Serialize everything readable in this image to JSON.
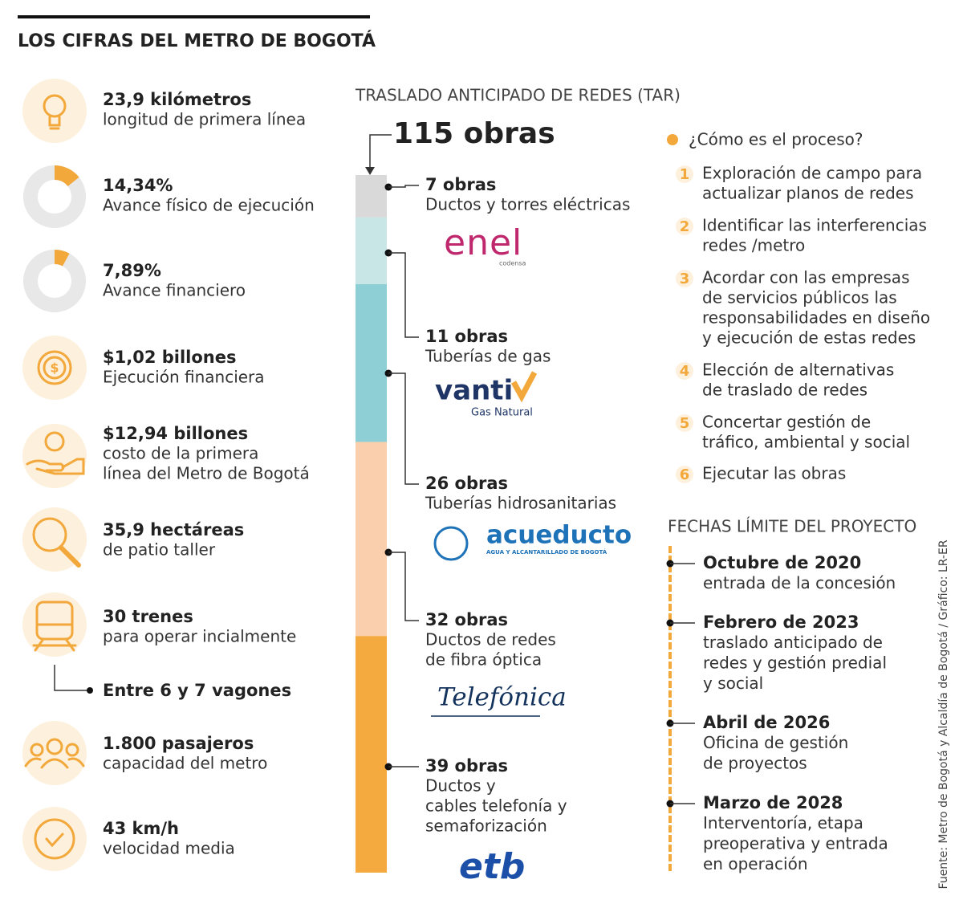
{
  "title": "LOS CIFRAS DEL METRO DE BOGOTÁ",
  "stats": [
    {
      "headline": "23,9 kilómetros",
      "lines": [
        "longitud de primera línea"
      ]
    },
    {
      "headline": {
        "value": 14.34,
        "label": "14,34%"
      },
      "lines": [
        "Avance físico de ejecución"
      ]
    },
    {
      "headline": {
        "value": 7.89,
        "label": "7,89%"
      },
      "lines": [
        "Avance financiero"
      ]
    },
    {
      "headline": "$1,02 billones",
      "lines": [
        "Ejecución financiera"
      ]
    },
    {
      "headline": "$12,94 billones",
      "lines": [
        "costo de la primera",
        "línea del Metro de Bogotá"
      ]
    },
    {
      "headline": "35,9 hectáreas",
      "lines": [
        "de patio taller"
      ]
    },
    {
      "headline": "30 trenes",
      "lines": [
        "para operar incialmente"
      ],
      "note": "Entre 6 y 7 vagones"
    },
    {
      "headline": "1.800 pasajeros",
      "lines": [
        "capacidad del metro"
      ]
    },
    {
      "headline": "43 km/h",
      "lines": [
        "velocidad media"
      ]
    }
  ],
  "tar": {
    "title": "TRASLADO ANTICIPADO DE REDES (TAR)",
    "total": "115 obras",
    "segments": [
      {
        "count": {
          "value": 7,
          "label": "7 obras"
        },
        "lines": [
          "Ductos y torres eléctricas"
        ],
        "logo": [
          "enel",
          "codensa"
        ]
      },
      {
        "count": {
          "value": 11,
          "label": "11 obras"
        },
        "lines": [
          "Tuberías de gas"
        ],
        "logo": [
          "vanti",
          "Gas Natural"
        ]
      },
      {
        "count": {
          "value": 26,
          "label": "26 obras"
        },
        "lines": [
          "Tuberías hidrosanitarias"
        ],
        "logo": [
          "acueducto",
          "AGUA Y ALCANTARILLADO DE BOGOTÁ"
        ]
      },
      {
        "count": {
          "value": 32,
          "label": "32 obras"
        },
        "lines": [
          "Ductos de redes",
          "de fibra óptica"
        ],
        "logo": [
          "Telefónica"
        ]
      },
      {
        "count": {
          "value": 39,
          "label": "39 obras"
        },
        "lines": [
          "Ductos y",
          "cables telefonía y",
          "semaforización"
        ],
        "logo": [
          "etb"
        ]
      }
    ]
  },
  "process": {
    "title": "¿Cómo es el proceso?",
    "steps": [
      {
        "number": "1",
        "lines": [
          "Exploración de campo para",
          "actualizar planos de redes"
        ]
      },
      {
        "number": "2",
        "lines": [
          "Identificar las interferencias",
          "redes /metro"
        ]
      },
      {
        "number": "3",
        "lines": [
          "Acordar con las empresas",
          "de servicios públicos las",
          "responsabilidades en diseño",
          "y ejecución de estas redes"
        ]
      },
      {
        "number": "4",
        "lines": [
          "Elección de alternativas",
          "de traslado de redes"
        ]
      },
      {
        "number": "5",
        "lines": [
          "Concertar gestión de",
          "tráfico, ambiental y social"
        ]
      },
      {
        "number": "6",
        "lines": [
          "Ejecutar las obras"
        ]
      }
    ]
  },
  "deadlines": {
    "title": "FECHAS LÍMITE DEL PROYECTO",
    "items": [
      {
        "date": "Octubre de 2020",
        "lines": [
          "entrada de la concesión"
        ]
      },
      {
        "date": "Febrero de 2023",
        "lines": [
          "traslado anticipado de",
          "redes y gestión predial",
          "y social"
        ]
      },
      {
        "date": "Abril de 2026",
        "lines": [
          "Oficina de gestión",
          "de proyectos"
        ]
      },
      {
        "date": "Marzo de 2028",
        "lines": [
          "Interventoría, etapa",
          "preoperativa y entrada",
          "en operación"
        ]
      }
    ]
  },
  "credit": "Fuente: Metro de Bogotá y Alcaldía de Bogotá / Gráfico: LR-ER"
}
